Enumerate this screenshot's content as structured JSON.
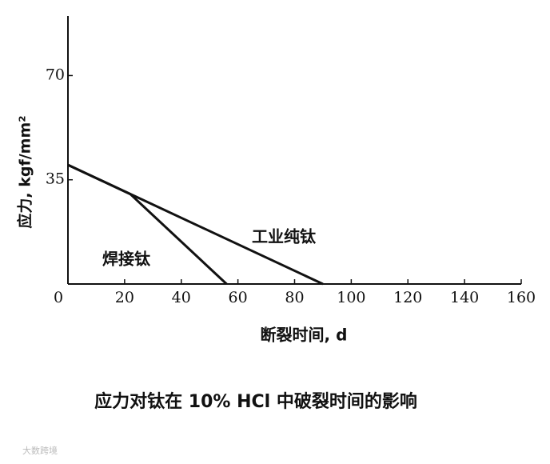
{
  "chart_data": {
    "type": "line",
    "title": "应力对钛在 10% HCl 中破裂时间的影响",
    "x_label": "断裂时间, d",
    "y_label": "应力, kgf/mm²",
    "watermark": "大数跨境",
    "xlim": [
      0,
      160
    ],
    "xticks": [
      0,
      20,
      40,
      60,
      80,
      100,
      120,
      140,
      160
    ],
    "ylim": [
      0,
      90
    ],
    "yticks": [
      35,
      70
    ],
    "grid": false,
    "series": [
      {
        "name": "工业纯钛",
        "color": "#111111",
        "x": [
          0,
          90
        ],
        "values": [
          40,
          0
        ]
      },
      {
        "name": "焊接钛",
        "color": "#111111",
        "x": [
          0,
          22,
          56
        ],
        "values": [
          40,
          30.2,
          0
        ]
      }
    ]
  }
}
